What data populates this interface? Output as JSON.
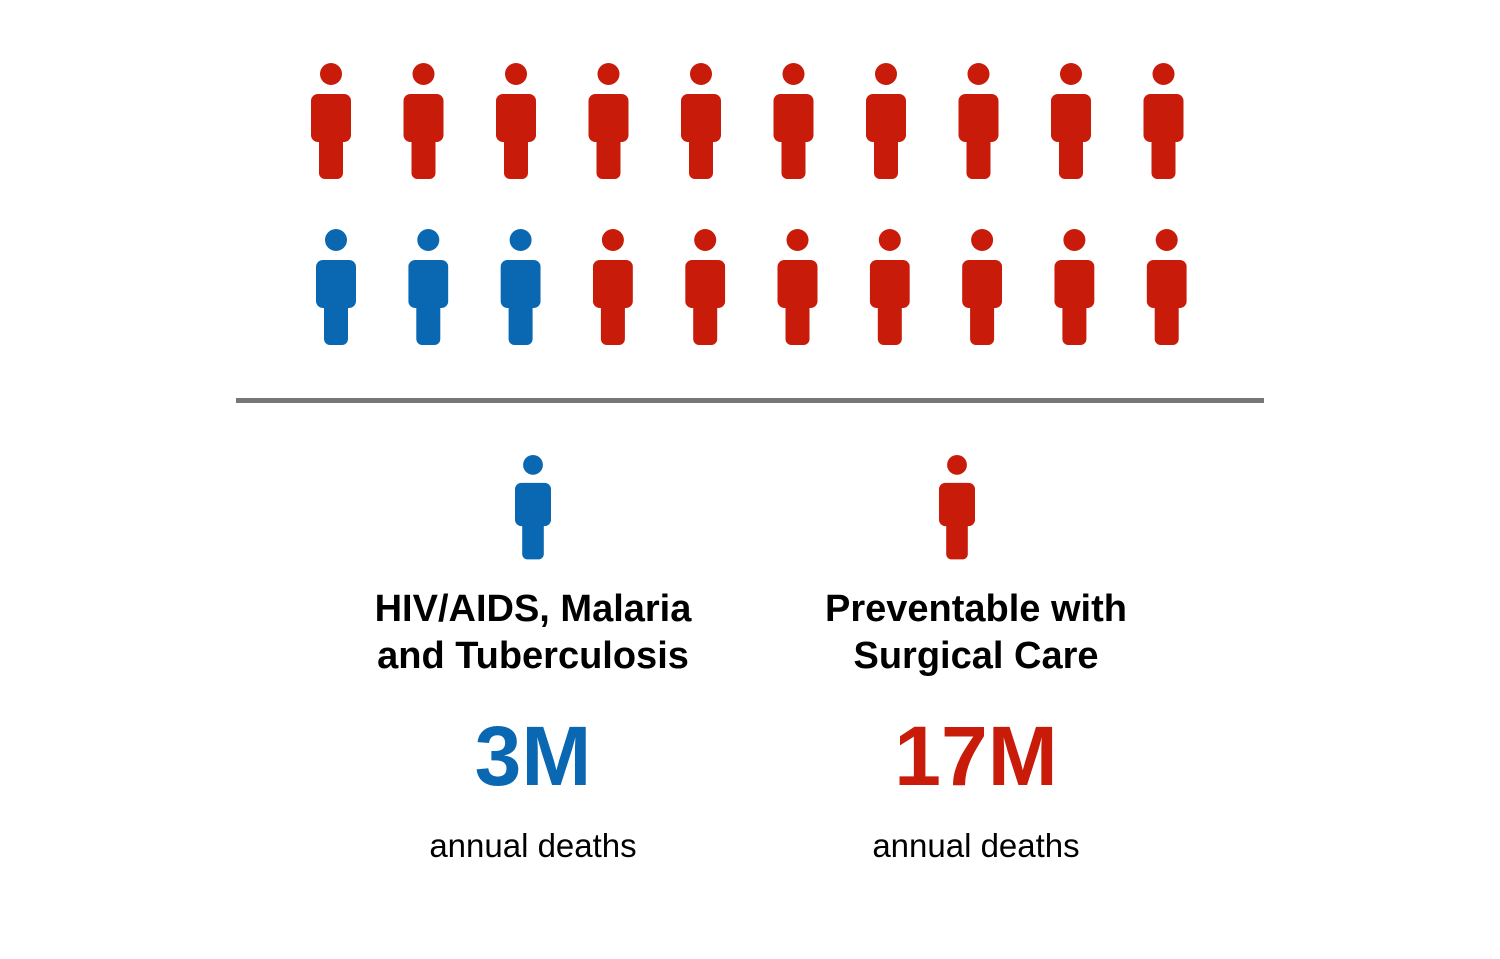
{
  "colors": {
    "blue": "#0A67B1",
    "red": "#C81B0A"
  },
  "icon": "person-icon",
  "chart_data": {
    "type": "pictogram",
    "total_icons": 20,
    "icons_per_row": 10,
    "series": [
      {
        "name": "HIV/AIDS, Malaria and Tuberculosis",
        "icons": 3,
        "value": "3M",
        "unit": "annual deaths",
        "color": "#0A67B1"
      },
      {
        "name": "Preventable with Surgical Care",
        "icons": 17,
        "value": "17M",
        "unit": "annual deaths",
        "color": "#C81B0A"
      }
    ]
  },
  "legend": {
    "left": {
      "label_line1": "HIV/AIDS, Malaria",
      "label_line2": "and Tuberculosis",
      "value": "3M",
      "unit": "annual deaths"
    },
    "right": {
      "label_line1": "Preventable with",
      "label_line2": "Surgical Care",
      "value": "17M",
      "unit": "annual deaths"
    }
  }
}
